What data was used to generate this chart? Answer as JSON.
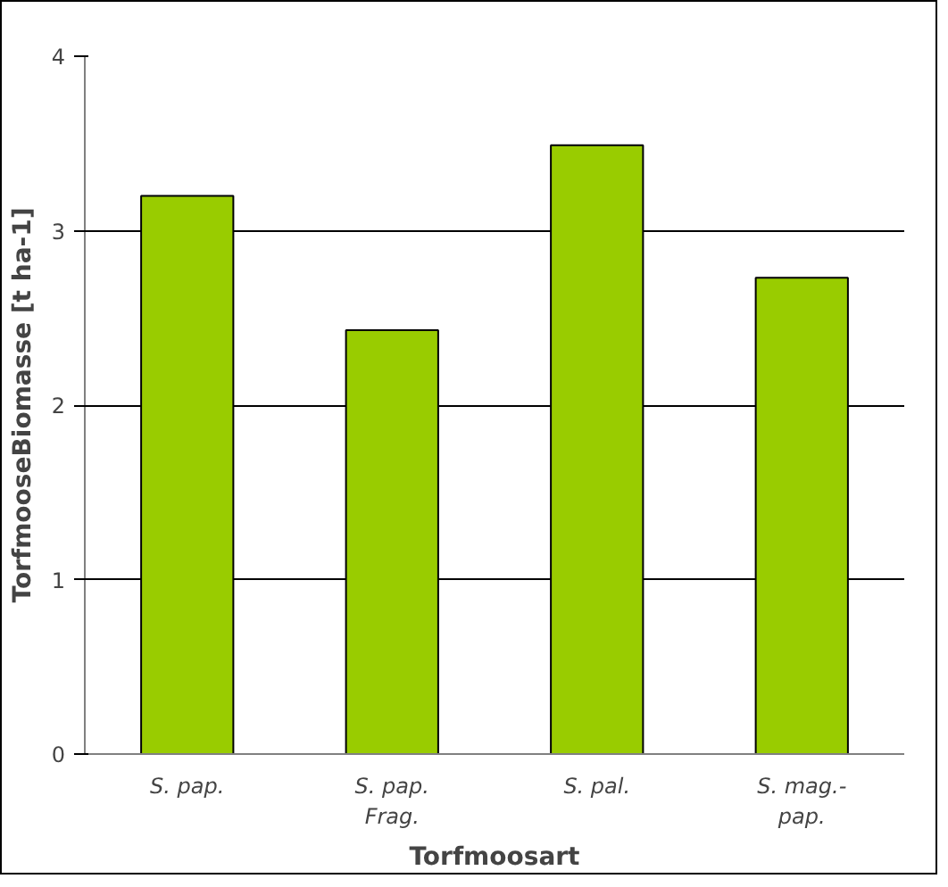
{
  "chart_data": {
    "type": "bar",
    "xlabel": "Torfmoosart",
    "ylabel": "TorfmooseBiomasse [t ha-1]",
    "categories": [
      "S. pap.",
      "S. pap.\nFrag.",
      "S. pal.",
      "S. mag.-\npap."
    ],
    "values": [
      3.2,
      2.43,
      3.49,
      2.73
    ],
    "color": "#99cc00",
    "ylim": [
      0,
      4
    ],
    "yticks": [
      0,
      1,
      2,
      3,
      4
    ],
    "grid": "y"
  }
}
